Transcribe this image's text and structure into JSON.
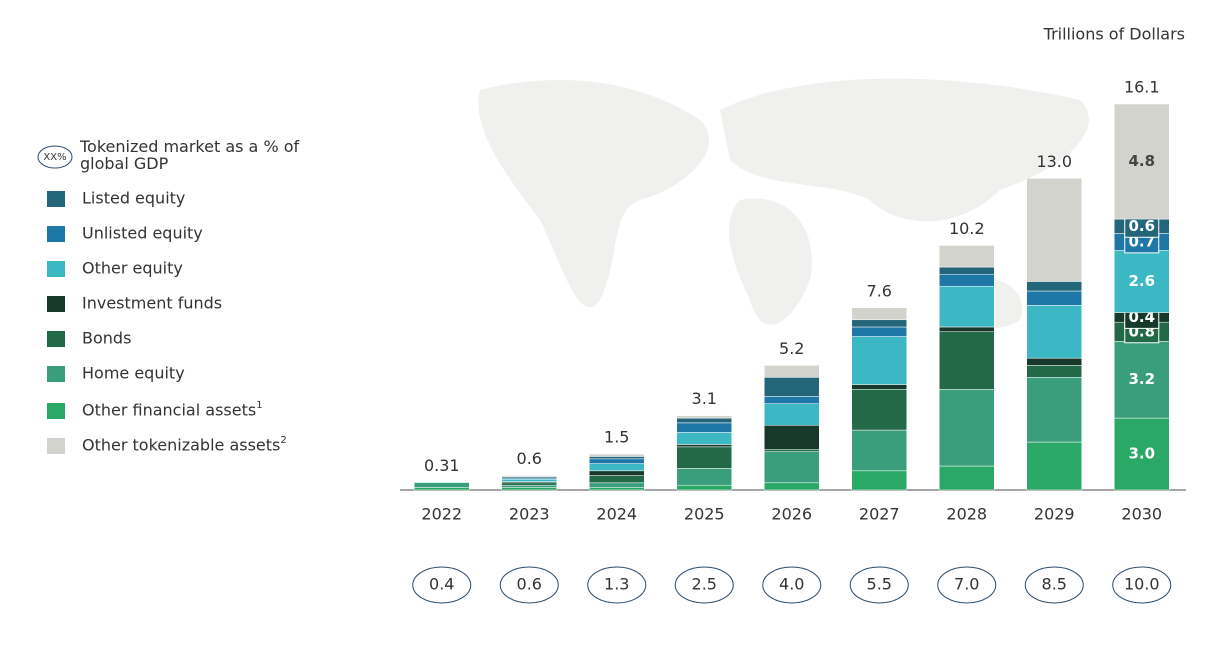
{
  "chart_data": {
    "type": "stacked-bar",
    "unit_label": "Trillions of Dollars",
    "categories": [
      "2022",
      "2023",
      "2024",
      "2025",
      "2026",
      "2027",
      "2028",
      "2029",
      "2030"
    ],
    "totals": {
      "values": [
        0.31,
        0.6,
        1.5,
        3.1,
        5.2,
        7.6,
        10.2,
        13.0,
        16.1
      ],
      "value_labels": [
        "0.31",
        "0.6",
        "1.5",
        "3.1",
        "5.2",
        "7.6",
        "10.2",
        "13.0",
        "16.1"
      ]
    },
    "gdp_share": {
      "legend_icon": "XX%",
      "legend": "Tokenized market as a % of global GDP",
      "values": [
        0.4,
        0.6,
        1.3,
        2.5,
        4.0,
        5.5,
        7.0,
        8.5,
        10.0
      ],
      "value_labels": [
        "0.4",
        "0.6",
        "1.3",
        "2.5",
        "4.0",
        "5.5",
        "7.0",
        "8.5",
        "10.0"
      ]
    },
    "series": [
      {
        "name": "Listed equity",
        "color": "#23667a",
        "values": [
          0,
          0.05,
          0.1,
          0.2,
          0.8,
          0.3,
          0.3,
          0.4,
          0.6
        ],
        "value_labels": [
          null,
          null,
          null,
          null,
          null,
          null,
          null,
          null,
          "0.6"
        ]
      },
      {
        "name": "Unlisted equity",
        "color": "#1f77a8",
        "values": [
          0,
          0.05,
          0.2,
          0.4,
          0.3,
          0.4,
          0.5,
          0.6,
          0.7
        ],
        "value_labels": [
          null,
          null,
          null,
          null,
          null,
          null,
          null,
          null,
          "0.7"
        ]
      },
      {
        "name": "Other equity",
        "color": "#3bb8c4",
        "values": [
          0,
          0.1,
          0.3,
          0.5,
          0.9,
          2.0,
          1.7,
          2.2,
          2.6
        ],
        "value_labels": [
          null,
          null,
          null,
          null,
          null,
          null,
          null,
          null,
          "2.6"
        ]
      },
      {
        "name": "Investment funds",
        "color": "#17392b",
        "values": [
          0,
          0.05,
          0.2,
          0.1,
          1.0,
          0.2,
          0.2,
          0.3,
          0.4
        ],
        "value_labels": [
          null,
          null,
          null,
          null,
          null,
          null,
          null,
          null,
          "0.4"
        ]
      },
      {
        "name": "Bonds",
        "color": "#226947",
        "values": [
          0,
          0.1,
          0.3,
          0.9,
          0.1,
          1.7,
          2.4,
          0.5,
          0.8
        ],
        "value_labels": [
          null,
          null,
          null,
          null,
          null,
          null,
          null,
          null,
          "0.8"
        ]
      },
      {
        "name": "Home equity",
        "color": "#3a9d7c",
        "values": [
          0.21,
          0.1,
          0.2,
          0.7,
          1.3,
          1.7,
          3.2,
          2.7,
          3.2
        ],
        "value_labels": [
          null,
          null,
          null,
          null,
          null,
          null,
          null,
          null,
          "3.2"
        ]
      },
      {
        "name": "Other financial assets",
        "footnote": "1",
        "color": "#2aa866",
        "values": [
          0.1,
          0.1,
          0.1,
          0.2,
          0.3,
          0.8,
          1.0,
          2.0,
          3.0
        ],
        "value_labels": [
          null,
          null,
          null,
          null,
          null,
          null,
          null,
          null,
          "3.0"
        ]
      },
      {
        "name": "Other tokenizable assets",
        "footnote": "2",
        "color": "#d3d3ce",
        "values": [
          0,
          0.05,
          0.1,
          0.1,
          0.5,
          0.5,
          0.9,
          4.3,
          4.8
        ],
        "value_labels": [
          null,
          null,
          null,
          null,
          null,
          null,
          null,
          null,
          "4.8"
        ]
      }
    ]
  }
}
